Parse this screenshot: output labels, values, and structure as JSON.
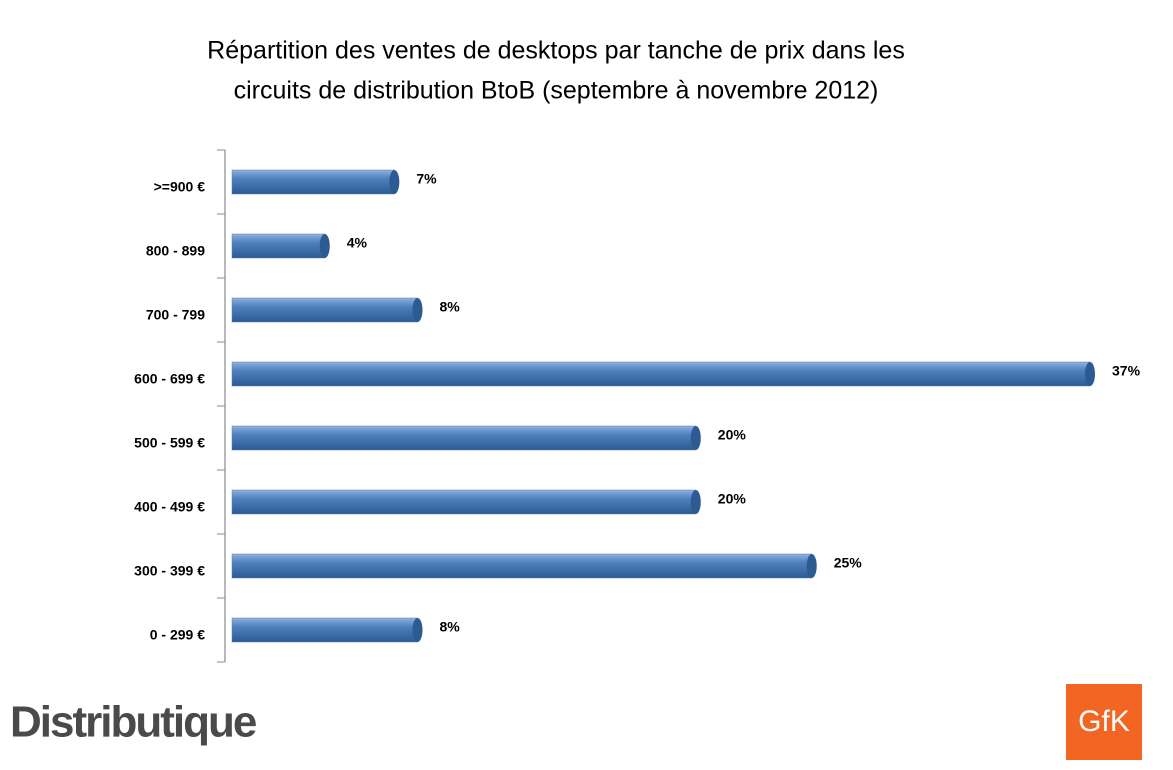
{
  "chart_data": {
    "type": "hbar",
    "title": [
      "Répartition des ventes de desktops par tanche de prix dans les",
      "circuits de distribution BtoB (septembre à novembre 2012)"
    ],
    "categories": [
      ">=900 €",
      "800 - 899",
      "700 - 799",
      "600 - 699 €",
      "500 - 599 €",
      "400 - 499 €",
      "300 - 399 €",
      "0 - 299 €"
    ],
    "values": [
      7,
      4,
      8,
      37,
      20,
      20,
      25,
      8
    ],
    "value_labels": [
      "7%",
      "4%",
      "8%",
      "37%",
      "20%",
      "20%",
      "25%",
      "8%"
    ],
    "color": "#4f81bd",
    "xlim": [
      0,
      37
    ]
  },
  "logos": {
    "left": "Distributique",
    "right": "GfK"
  }
}
